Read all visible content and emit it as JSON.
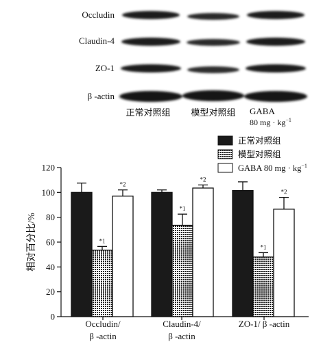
{
  "blot": {
    "proteins": [
      "Occludin",
      "Claudin-4",
      "ZO-1",
      "β -actin"
    ],
    "lanes": [
      {
        "label": "正常对照组"
      },
      {
        "label": "模型对照组"
      },
      {
        "label": "GABA",
        "label_line2": "80 mg · kg",
        "label_sup": "−1"
      }
    ]
  },
  "chart_data": {
    "type": "bar",
    "categories": [
      {
        "line1": "Occludin/",
        "line2": "β -actin"
      },
      {
        "line1": "Claudin-4/",
        "line2": "β -actin"
      },
      {
        "line1": "ZO-1/ β -actin",
        "line2": ""
      }
    ],
    "series": [
      {
        "name": "正常对照组",
        "values": [
          100,
          100,
          101.5
        ],
        "errors": [
          7.5,
          2,
          7
        ],
        "marks": [
          "",
          "",
          ""
        ]
      },
      {
        "name": "模型对照组",
        "values": [
          53.5,
          73.5,
          48
        ],
        "errors": [
          3,
          9,
          3.5
        ],
        "marks": [
          "*1",
          "*1",
          "*1"
        ]
      },
      {
        "name": "GABA 80 mg · kg",
        "name_sup": "−1",
        "values": [
          97,
          103.5,
          86.5
        ],
        "errors": [
          5,
          2.5,
          9.5
        ],
        "marks": [
          "*2",
          "*2",
          "*2"
        ]
      }
    ],
    "ylabel": "相对百分比/%",
    "ylim": [
      0,
      120
    ],
    "yticks": [
      0,
      20,
      40,
      60,
      80,
      100,
      120
    ],
    "legend_position": "top-right"
  }
}
